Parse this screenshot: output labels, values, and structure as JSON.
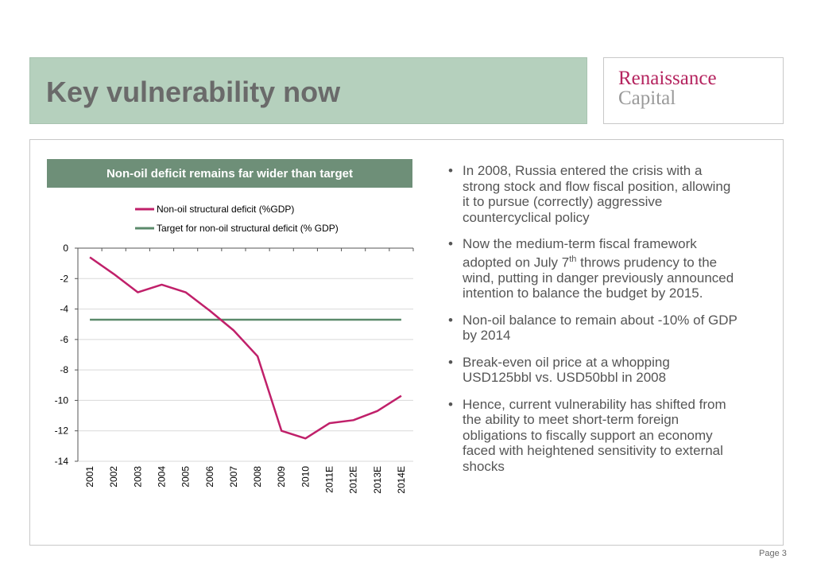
{
  "slide": {
    "title": "Key vulnerability now",
    "page": "Page 3"
  },
  "logo": {
    "line1": "Renaissance",
    "line2": "Capital"
  },
  "chart_header": "Non-oil deficit remains far wider than target",
  "chart_data": {
    "type": "line",
    "title": "Non-oil deficit remains far wider than target",
    "x": [
      "2001",
      "2002",
      "2003",
      "2004",
      "2005",
      "2006",
      "2007",
      "2008",
      "2009",
      "2010",
      "2011E",
      "2012E",
      "2013E",
      "2014E"
    ],
    "series": [
      {
        "name": "Non-oil structural deficit (%GDP)",
        "color": "#c0206a",
        "values": [
          -0.6,
          -1.7,
          -2.9,
          -2.4,
          -2.9,
          -4.1,
          -5.4,
          -7.1,
          -12.0,
          -12.5,
          -11.5,
          -11.3,
          -10.7,
          -9.7
        ]
      },
      {
        "name": "Target for non-oil structural deficit (% GDP)",
        "color": "#5b8a6b",
        "values": [
          -4.7,
          -4.7,
          -4.7,
          -4.7,
          -4.7,
          -4.7,
          -4.7,
          -4.7,
          -4.7,
          -4.7,
          -4.7,
          -4.7,
          -4.7,
          -4.7
        ]
      }
    ],
    "yticks": [
      "0",
      "-2",
      "-4",
      "-6",
      "-8",
      "-10",
      "-12",
      "-14"
    ],
    "ylim": [
      -14,
      0
    ],
    "xlabel": "",
    "ylabel": "",
    "grid": true,
    "legend_position": "top"
  },
  "bullets": [
    {
      "text": "In 2008, Russia entered the crisis with a strong stock and flow fiscal position, allowing it to pursue (correctly) aggressive countercyclical policy"
    },
    {
      "pre": "Now the medium-term fiscal framework adopted on July 7",
      "sup": "th",
      "post": " throws prudency to the wind, putting in danger previously announced intention to balance the budget by 2015."
    },
    {
      "text": "Non-oil balance to remain about -10% of GDP by 2014"
    },
    {
      "text": "Break-even oil price at a whopping USD125bbl vs. USD50bbl in 2008"
    },
    {
      "text": "Hence, current vulnerability has shifted from the ability to meet short-term foreign obligations to fiscally support an economy faced with heightened sensitivity to external shocks"
    }
  ]
}
